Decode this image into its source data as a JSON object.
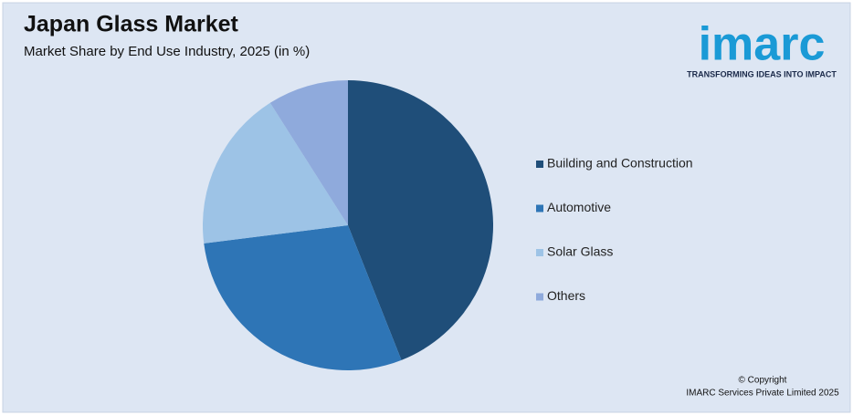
{
  "chart_data": {
    "type": "pie",
    "title": "Japan Glass Market",
    "subtitle": "Market Share by End Use Industry, 2025 (in %)",
    "categories": [
      "Building and Construction",
      "Automotive",
      "Solar Glass",
      "Others"
    ],
    "values": [
      44,
      29,
      18,
      9
    ],
    "colors": [
      "#1f4e79",
      "#2e75b6",
      "#9dc3e6",
      "#8faadc"
    ],
    "legend": "right",
    "logo": "imarc",
    "logo_tagline": "TRANSFORMING IDEAS INTO IMPACT",
    "copyright": [
      "© Copyright",
      "IMARC Services Private Limited 2025"
    ]
  }
}
